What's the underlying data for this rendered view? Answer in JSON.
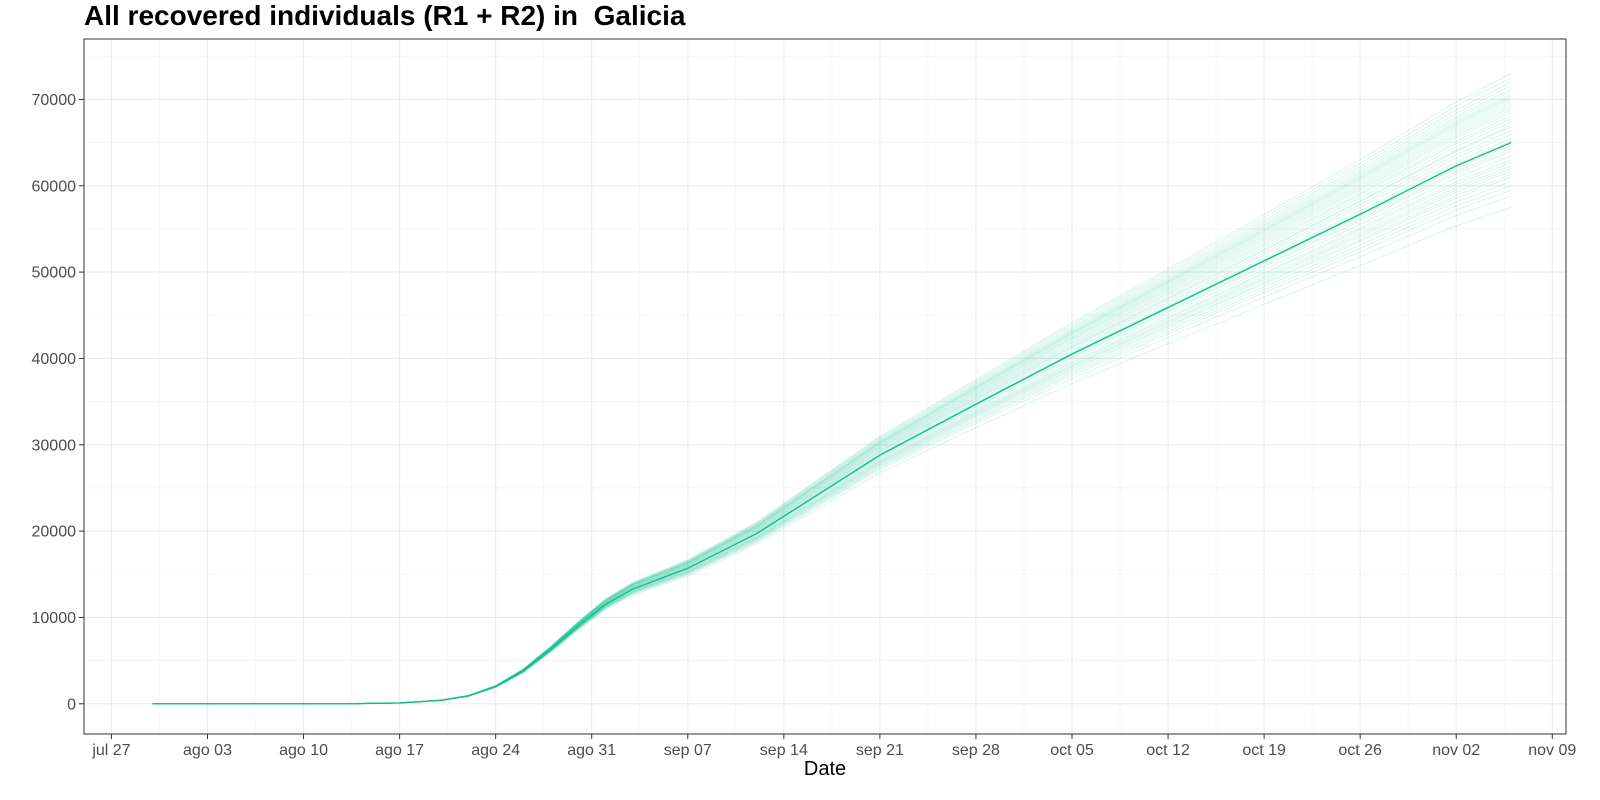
{
  "chart_data": {
    "type": "line",
    "title": "All recovered individuals (R1 + R2) in  Galicia",
    "xlabel": "Date",
    "ylabel": "",
    "x_axis_kind": "date",
    "xlim": [
      "2020-07-25",
      "2020-11-10"
    ],
    "ylim": [
      -3500,
      77000
    ],
    "x_ticks": [
      {
        "date": "2020-07-27",
        "label": "jul 27"
      },
      {
        "date": "2020-08-03",
        "label": "ago 03"
      },
      {
        "date": "2020-08-10",
        "label": "ago 10"
      },
      {
        "date": "2020-08-17",
        "label": "ago 17"
      },
      {
        "date": "2020-08-24",
        "label": "ago 24"
      },
      {
        "date": "2020-08-31",
        "label": "ago 31"
      },
      {
        "date": "2020-09-07",
        "label": "sep 07"
      },
      {
        "date": "2020-09-14",
        "label": "sep 14"
      },
      {
        "date": "2020-09-21",
        "label": "sep 21"
      },
      {
        "date": "2020-09-28",
        "label": "sep 28"
      },
      {
        "date": "2020-10-05",
        "label": "oct 05"
      },
      {
        "date": "2020-10-12",
        "label": "oct 12"
      },
      {
        "date": "2020-10-19",
        "label": "oct 19"
      },
      {
        "date": "2020-10-26",
        "label": "oct 26"
      },
      {
        "date": "2020-11-02",
        "label": "nov 02"
      },
      {
        "date": "2020-11-09",
        "label": "nov 09"
      }
    ],
    "y_ticks": [
      0,
      10000,
      20000,
      30000,
      40000,
      50000,
      60000,
      70000
    ],
    "y_tick_labels": [
      "0",
      "10000",
      "20000",
      "30000",
      "40000",
      "50000",
      "60000",
      "70000"
    ],
    "grid": true,
    "legend": "none",
    "line_color": "#10c090",
    "main_series": {
      "x": [
        "2020-07-30",
        "2020-08-13",
        "2020-08-17",
        "2020-08-20",
        "2020-08-22",
        "2020-08-24",
        "2020-08-26",
        "2020-08-28",
        "2020-08-30",
        "2020-09-01",
        "2020-09-03",
        "2020-09-07",
        "2020-09-12",
        "2020-09-21",
        "2020-09-28",
        "2020-10-05",
        "2020-10-12",
        "2020-10-19",
        "2020-10-26",
        "2020-11-02",
        "2020-11-06"
      ],
      "values": [
        0,
        0,
        100,
        400,
        900,
        2000,
        3800,
        6300,
        9000,
        11500,
        13300,
        15700,
        19700,
        28800,
        34700,
        40500,
        45900,
        51300,
        56700,
        62300,
        65000
      ]
    },
    "ensemble": {
      "count": 40,
      "end_date": "2020-11-06",
      "end_values": [
        57500,
        58800,
        59500,
        60000,
        60500,
        61000,
        61300,
        61700,
        62000,
        62300,
        62700,
        63000,
        63500,
        64000,
        64300,
        64700,
        65200,
        65500,
        66000,
        66400,
        66800,
        67000,
        67400,
        67800,
        68100,
        68500,
        68800,
        69100,
        69400,
        69700,
        70000,
        70200,
        70400,
        70600,
        70900,
        71200,
        71600,
        72000,
        72500,
        73000
      ]
    }
  }
}
